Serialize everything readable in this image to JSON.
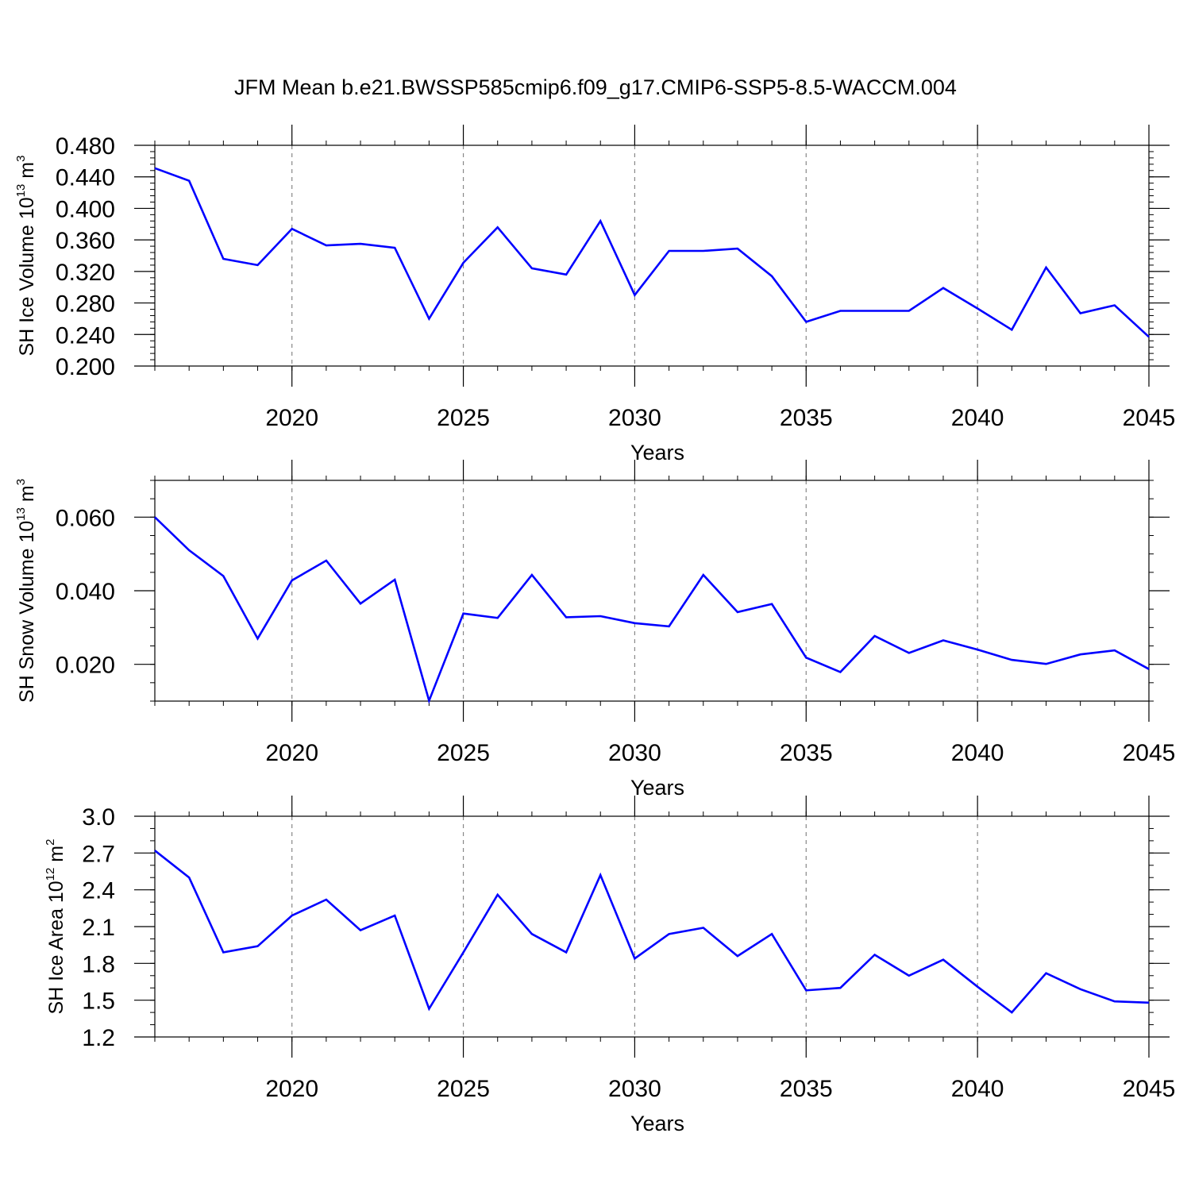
{
  "figure": {
    "title": "JFM Mean b.e21.BWSSP585cmip6.f09_g17.CMIP6-SSP5-8.5-WACCM.004",
    "line_color": "#0000ff",
    "grid_color": "#888888"
  },
  "chart_data": [
    {
      "type": "line",
      "title": "JFM Mean b.e21.BWSSP585cmip6.f09_g17.CMIP6-SSP5-8.5-WACCM.004",
      "xlabel": "Years",
      "ylabel": {
        "base": "SH Ice Volume 10",
        "exp1": "13",
        "unit": " m",
        "exp2": "3"
      },
      "xlim": [
        2016,
        2045
      ],
      "ylim": [
        0.2,
        0.48
      ],
      "xticks": [
        2020,
        2025,
        2030,
        2035,
        2040,
        2045
      ],
      "xtick_labels": [
        "2020",
        "2025",
        "2030",
        "2035",
        "2040",
        "2045"
      ],
      "yticks": [
        0.2,
        0.24,
        0.28,
        0.32,
        0.36,
        0.4,
        0.44,
        0.48
      ],
      "ytick_labels": [
        "0.200",
        "0.240",
        "0.280",
        "0.320",
        "0.360",
        "0.400",
        "0.440",
        "0.480"
      ],
      "y_minor_step": 0.008,
      "x_minor_step": 1,
      "vgrid": [
        2020,
        2025,
        2030,
        2035,
        2040
      ],
      "x": [
        2016,
        2017,
        2018,
        2019,
        2020,
        2021,
        2022,
        2023,
        2024,
        2025,
        2026,
        2027,
        2028,
        2029,
        2030,
        2031,
        2032,
        2033,
        2034,
        2035,
        2036,
        2037,
        2038,
        2039,
        2040,
        2041,
        2042,
        2043,
        2044,
        2045
      ],
      "series": [
        {
          "name": "SH Ice Volume",
          "values": [
            0.451,
            0.435,
            0.336,
            0.328,
            0.374,
            0.353,
            0.355,
            0.35,
            0.26,
            0.331,
            0.376,
            0.324,
            0.316,
            0.384,
            0.29,
            0.346,
            0.346,
            0.349,
            0.314,
            0.256,
            0.27,
            0.27,
            0.27,
            0.299,
            0.273,
            0.246,
            0.325,
            0.267,
            0.277,
            0.237
          ]
        }
      ]
    },
    {
      "type": "line",
      "xlabel": "Years",
      "ylabel": {
        "base": "SH Snow Volume 10",
        "exp1": "13",
        "unit": " m",
        "exp2": "3"
      },
      "xlim": [
        2016,
        2045
      ],
      "ylim": [
        0.01,
        0.07
      ],
      "xticks": [
        2020,
        2025,
        2030,
        2035,
        2040,
        2045
      ],
      "xtick_labels": [
        "2020",
        "2025",
        "2030",
        "2035",
        "2040",
        "2045"
      ],
      "yticks": [
        0.02,
        0.04,
        0.06
      ],
      "ytick_labels": [
        "0.020",
        "0.040",
        "0.060"
      ],
      "y_minor_step": 0.005,
      "x_minor_step": 1,
      "vgrid": [
        2020,
        2025,
        2030,
        2035,
        2040
      ],
      "x": [
        2016,
        2017,
        2018,
        2019,
        2020,
        2021,
        2022,
        2023,
        2024,
        2025,
        2026,
        2027,
        2028,
        2029,
        2030,
        2031,
        2032,
        2033,
        2034,
        2035,
        2036,
        2037,
        2038,
        2039,
        2040,
        2041,
        2042,
        2043,
        2044,
        2045
      ],
      "series": [
        {
          "name": "SH Snow Volume",
          "values": [
            0.06,
            0.051,
            0.044,
            0.027,
            0.0428,
            0.0482,
            0.0365,
            0.043,
            0.0101,
            0.0338,
            0.0326,
            0.0443,
            0.0328,
            0.0331,
            0.0312,
            0.0303,
            0.0443,
            0.0342,
            0.0364,
            0.0218,
            0.0179,
            0.0277,
            0.0231,
            0.0265,
            0.024,
            0.0212,
            0.0201,
            0.0227,
            0.0238,
            0.0187
          ]
        }
      ]
    },
    {
      "type": "line",
      "xlabel": "Years",
      "ylabel": {
        "base": "SH Ice Area 10",
        "exp1": "12",
        "unit": " m",
        "exp2": "2"
      },
      "xlim": [
        2016,
        2045
      ],
      "ylim": [
        1.2,
        3.0
      ],
      "xticks": [
        2020,
        2025,
        2030,
        2035,
        2040,
        2045
      ],
      "xtick_labels": [
        "2020",
        "2025",
        "2030",
        "2035",
        "2040",
        "2045"
      ],
      "yticks": [
        1.2,
        1.5,
        1.8,
        2.1,
        2.4,
        2.7,
        3.0
      ],
      "ytick_labels": [
        "1.2",
        "1.5",
        "1.8",
        "2.1",
        "2.4",
        "2.7",
        "3.0"
      ],
      "y_minor_step": 0.1,
      "x_minor_step": 1,
      "vgrid": [
        2020,
        2025,
        2030,
        2035,
        2040
      ],
      "x": [
        2016,
        2017,
        2018,
        2019,
        2020,
        2021,
        2022,
        2023,
        2024,
        2025,
        2026,
        2027,
        2028,
        2029,
        2030,
        2031,
        2032,
        2033,
        2034,
        2035,
        2036,
        2037,
        2038,
        2039,
        2040,
        2041,
        2042,
        2043,
        2044,
        2045
      ],
      "series": [
        {
          "name": "SH Ice Area",
          "values": [
            2.72,
            2.5,
            1.89,
            1.94,
            2.19,
            2.32,
            2.07,
            2.19,
            1.43,
            1.89,
            2.36,
            2.04,
            1.89,
            2.52,
            1.84,
            2.04,
            2.09,
            1.86,
            2.04,
            1.58,
            1.6,
            1.87,
            1.7,
            1.83,
            1.61,
            1.4,
            1.72,
            1.59,
            1.49,
            1.48
          ]
        }
      ]
    }
  ]
}
